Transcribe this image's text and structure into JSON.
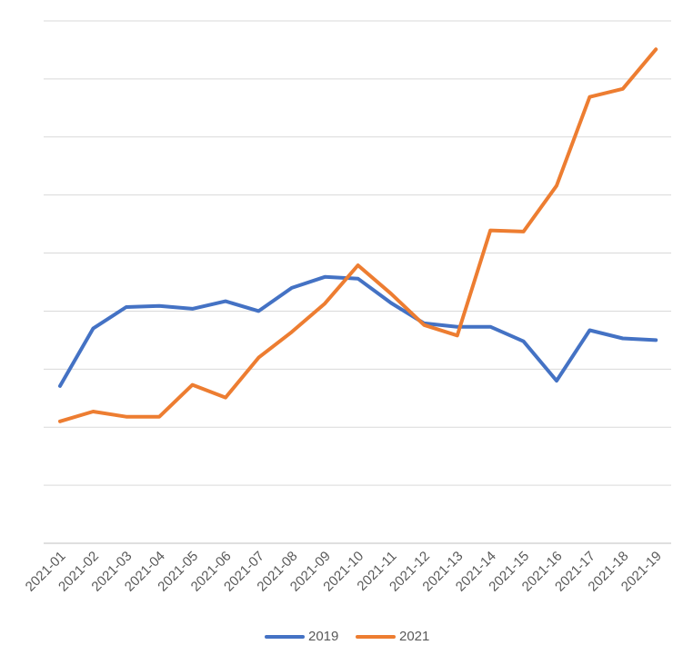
{
  "chart_data": {
    "type": "line",
    "categories": [
      "2021-01",
      "2021-02",
      "2021-03",
      "2021-04",
      "2021-05",
      "2021-06",
      "2021-07",
      "2021-08",
      "2021-09",
      "2021-10",
      "2021-11",
      "2021-12",
      "2021-13",
      "2021-14",
      "2021-15",
      "2021-16",
      "2021-17",
      "2021-18",
      "2021-19"
    ],
    "series": [
      {
        "name": "2019",
        "color": "#4472C4",
        "values": [
          2.71,
          3.7,
          4.07,
          4.09,
          4.04,
          4.17,
          4.0,
          4.4,
          4.59,
          4.56,
          4.14,
          3.79,
          3.73,
          3.73,
          3.48,
          2.8,
          3.67,
          3.53,
          3.5
        ]
      },
      {
        "name": "2021",
        "color": "#ED7D31",
        "values": [
          2.1,
          2.27,
          2.18,
          2.18,
          2.73,
          2.51,
          3.2,
          3.64,
          4.13,
          4.79,
          4.3,
          3.76,
          3.58,
          5.39,
          5.37,
          6.16,
          7.69,
          7.83,
          8.51
        ]
      }
    ],
    "ylim": [
      0,
      9
    ],
    "gridlines": 10,
    "grid": true,
    "legend_position": "bottom",
    "title": "",
    "xlabel": "",
    "ylabel": ""
  }
}
